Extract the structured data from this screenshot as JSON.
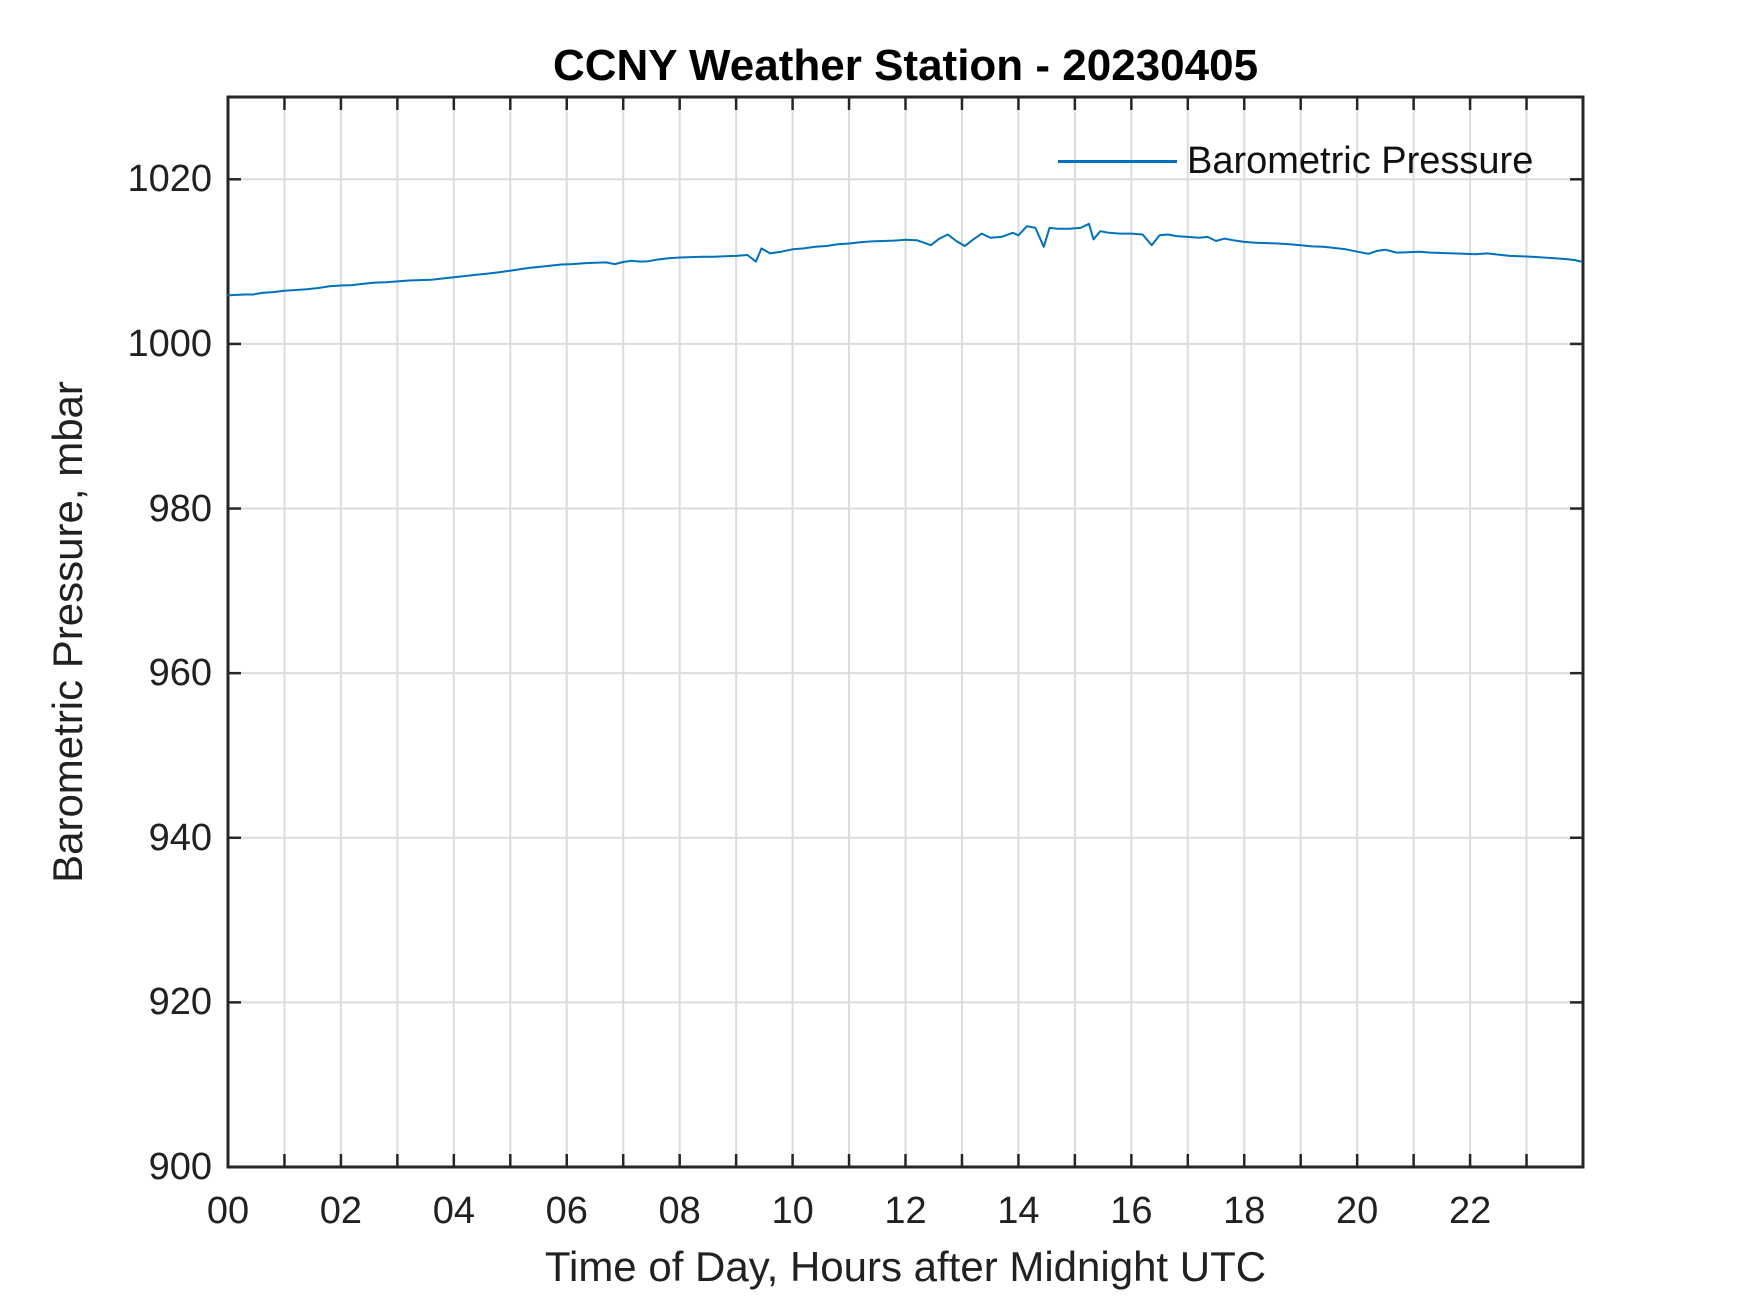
{
  "figure_title": "CCNY Weather Station - 20230405",
  "colors": {
    "line": "#0072BD",
    "grid": "#DCDCDC",
    "axis": "#262626",
    "text": "#212121",
    "background": "#FFFFFF"
  },
  "chart_data": {
    "type": "line",
    "title": "CCNY Weather Station - 20230405",
    "xlabel": "Time of Day, Hours after Midnight UTC",
    "ylabel": "Barometric Pressure, mbar",
    "xlim": [
      0,
      24
    ],
    "ylim": [
      900,
      1030
    ],
    "grid": true,
    "xtick_marks": [
      0,
      1,
      2,
      3,
      4,
      5,
      6,
      7,
      8,
      9,
      10,
      11,
      12,
      13,
      14,
      15,
      16,
      17,
      18,
      19,
      20,
      21,
      22,
      23,
      24
    ],
    "xtick_labels": [
      {
        "value": 0,
        "label": "00"
      },
      {
        "value": 2,
        "label": "02"
      },
      {
        "value": 4,
        "label": "04"
      },
      {
        "value": 6,
        "label": "06"
      },
      {
        "value": 8,
        "label": "08"
      },
      {
        "value": 10,
        "label": "10"
      },
      {
        "value": 12,
        "label": "12"
      },
      {
        "value": 14,
        "label": "14"
      },
      {
        "value": 16,
        "label": "16"
      },
      {
        "value": 18,
        "label": "18"
      },
      {
        "value": 20,
        "label": "20"
      },
      {
        "value": 22,
        "label": "22"
      }
    ],
    "ytick_labels": [
      {
        "value": 900,
        "label": "900"
      },
      {
        "value": 920,
        "label": "920"
      },
      {
        "value": 940,
        "label": "940"
      },
      {
        "value": 960,
        "label": "960"
      },
      {
        "value": 980,
        "label": "980"
      },
      {
        "value": 1000,
        "label": "1000"
      },
      {
        "value": 1020,
        "label": "1020"
      }
    ],
    "legend": {
      "position": "northeast",
      "entries": [
        {
          "label": "Barometric Pressure",
          "color": "#0072BD"
        }
      ]
    },
    "series": [
      {
        "name": "Barometric Pressure",
        "color": "#0072BD",
        "x": [
          0.0,
          0.15,
          0.3,
          0.45,
          0.6,
          0.8,
          1.0,
          1.2,
          1.4,
          1.6,
          1.8,
          2.0,
          2.2,
          2.4,
          2.6,
          2.8,
          3.0,
          3.2,
          3.4,
          3.6,
          3.8,
          4.0,
          4.2,
          4.4,
          4.6,
          4.8,
          5.0,
          5.2,
          5.35,
          5.5,
          5.7,
          5.9,
          6.1,
          6.3,
          6.5,
          6.7,
          6.85,
          7.0,
          7.15,
          7.3,
          7.45,
          7.6,
          7.8,
          8.0,
          8.2,
          8.4,
          8.6,
          8.8,
          9.0,
          9.2,
          9.35,
          9.45,
          9.6,
          9.8,
          10.0,
          10.2,
          10.4,
          10.6,
          10.8,
          11.0,
          11.2,
          11.4,
          11.6,
          11.8,
          12.0,
          12.2,
          12.45,
          12.6,
          12.75,
          12.9,
          13.05,
          13.2,
          13.35,
          13.5,
          13.7,
          13.9,
          14.0,
          14.15,
          14.3,
          14.45,
          14.55,
          14.7,
          14.9,
          15.1,
          15.25,
          15.33,
          15.45,
          15.6,
          15.8,
          16.0,
          16.2,
          16.36,
          16.5,
          16.65,
          16.8,
          17.0,
          17.2,
          17.35,
          17.5,
          17.65,
          17.8,
          18.0,
          18.2,
          18.4,
          18.6,
          18.8,
          19.0,
          19.2,
          19.4,
          19.6,
          19.8,
          20.0,
          20.2,
          20.35,
          20.5,
          20.7,
          20.9,
          21.1,
          21.3,
          21.5,
          21.7,
          21.9,
          22.1,
          22.3,
          22.5,
          22.7,
          22.9,
          23.1,
          23.3,
          23.5,
          23.7,
          23.85,
          23.97
        ],
        "y": [
          1005.9,
          1005.95,
          1006.0,
          1006.0,
          1006.2,
          1006.3,
          1006.45,
          1006.55,
          1006.65,
          1006.8,
          1007.0,
          1007.1,
          1007.15,
          1007.3,
          1007.45,
          1007.5,
          1007.6,
          1007.7,
          1007.75,
          1007.8,
          1007.95,
          1008.1,
          1008.25,
          1008.4,
          1008.55,
          1008.7,
          1008.9,
          1009.1,
          1009.25,
          1009.35,
          1009.5,
          1009.65,
          1009.7,
          1009.8,
          1009.85,
          1009.9,
          1009.7,
          1009.95,
          1010.1,
          1010.0,
          1010.05,
          1010.25,
          1010.4,
          1010.5,
          1010.55,
          1010.6,
          1010.6,
          1010.65,
          1010.7,
          1010.8,
          1010.0,
          1011.6,
          1011.0,
          1011.2,
          1011.5,
          1011.6,
          1011.8,
          1011.9,
          1012.1,
          1012.2,
          1012.35,
          1012.45,
          1012.5,
          1012.55,
          1012.65,
          1012.6,
          1012.0,
          1012.8,
          1013.3,
          1012.5,
          1011.9,
          1012.7,
          1013.4,
          1012.9,
          1013.0,
          1013.5,
          1013.2,
          1014.3,
          1014.1,
          1011.8,
          1014.1,
          1014.0,
          1014.0,
          1014.1,
          1014.6,
          1012.7,
          1013.7,
          1013.5,
          1013.4,
          1013.4,
          1013.3,
          1012.0,
          1013.2,
          1013.3,
          1013.1,
          1013.0,
          1012.9,
          1013.0,
          1012.5,
          1012.8,
          1012.6,
          1012.4,
          1012.3,
          1012.25,
          1012.2,
          1012.1,
          1012.0,
          1011.85,
          1011.8,
          1011.65,
          1011.5,
          1011.2,
          1010.95,
          1011.3,
          1011.45,
          1011.1,
          1011.15,
          1011.2,
          1011.1,
          1011.05,
          1011.0,
          1010.95,
          1010.9,
          1011.0,
          1010.85,
          1010.7,
          1010.65,
          1010.6,
          1010.5,
          1010.4,
          1010.3,
          1010.2,
          1010.0
        ]
      }
    ]
  }
}
